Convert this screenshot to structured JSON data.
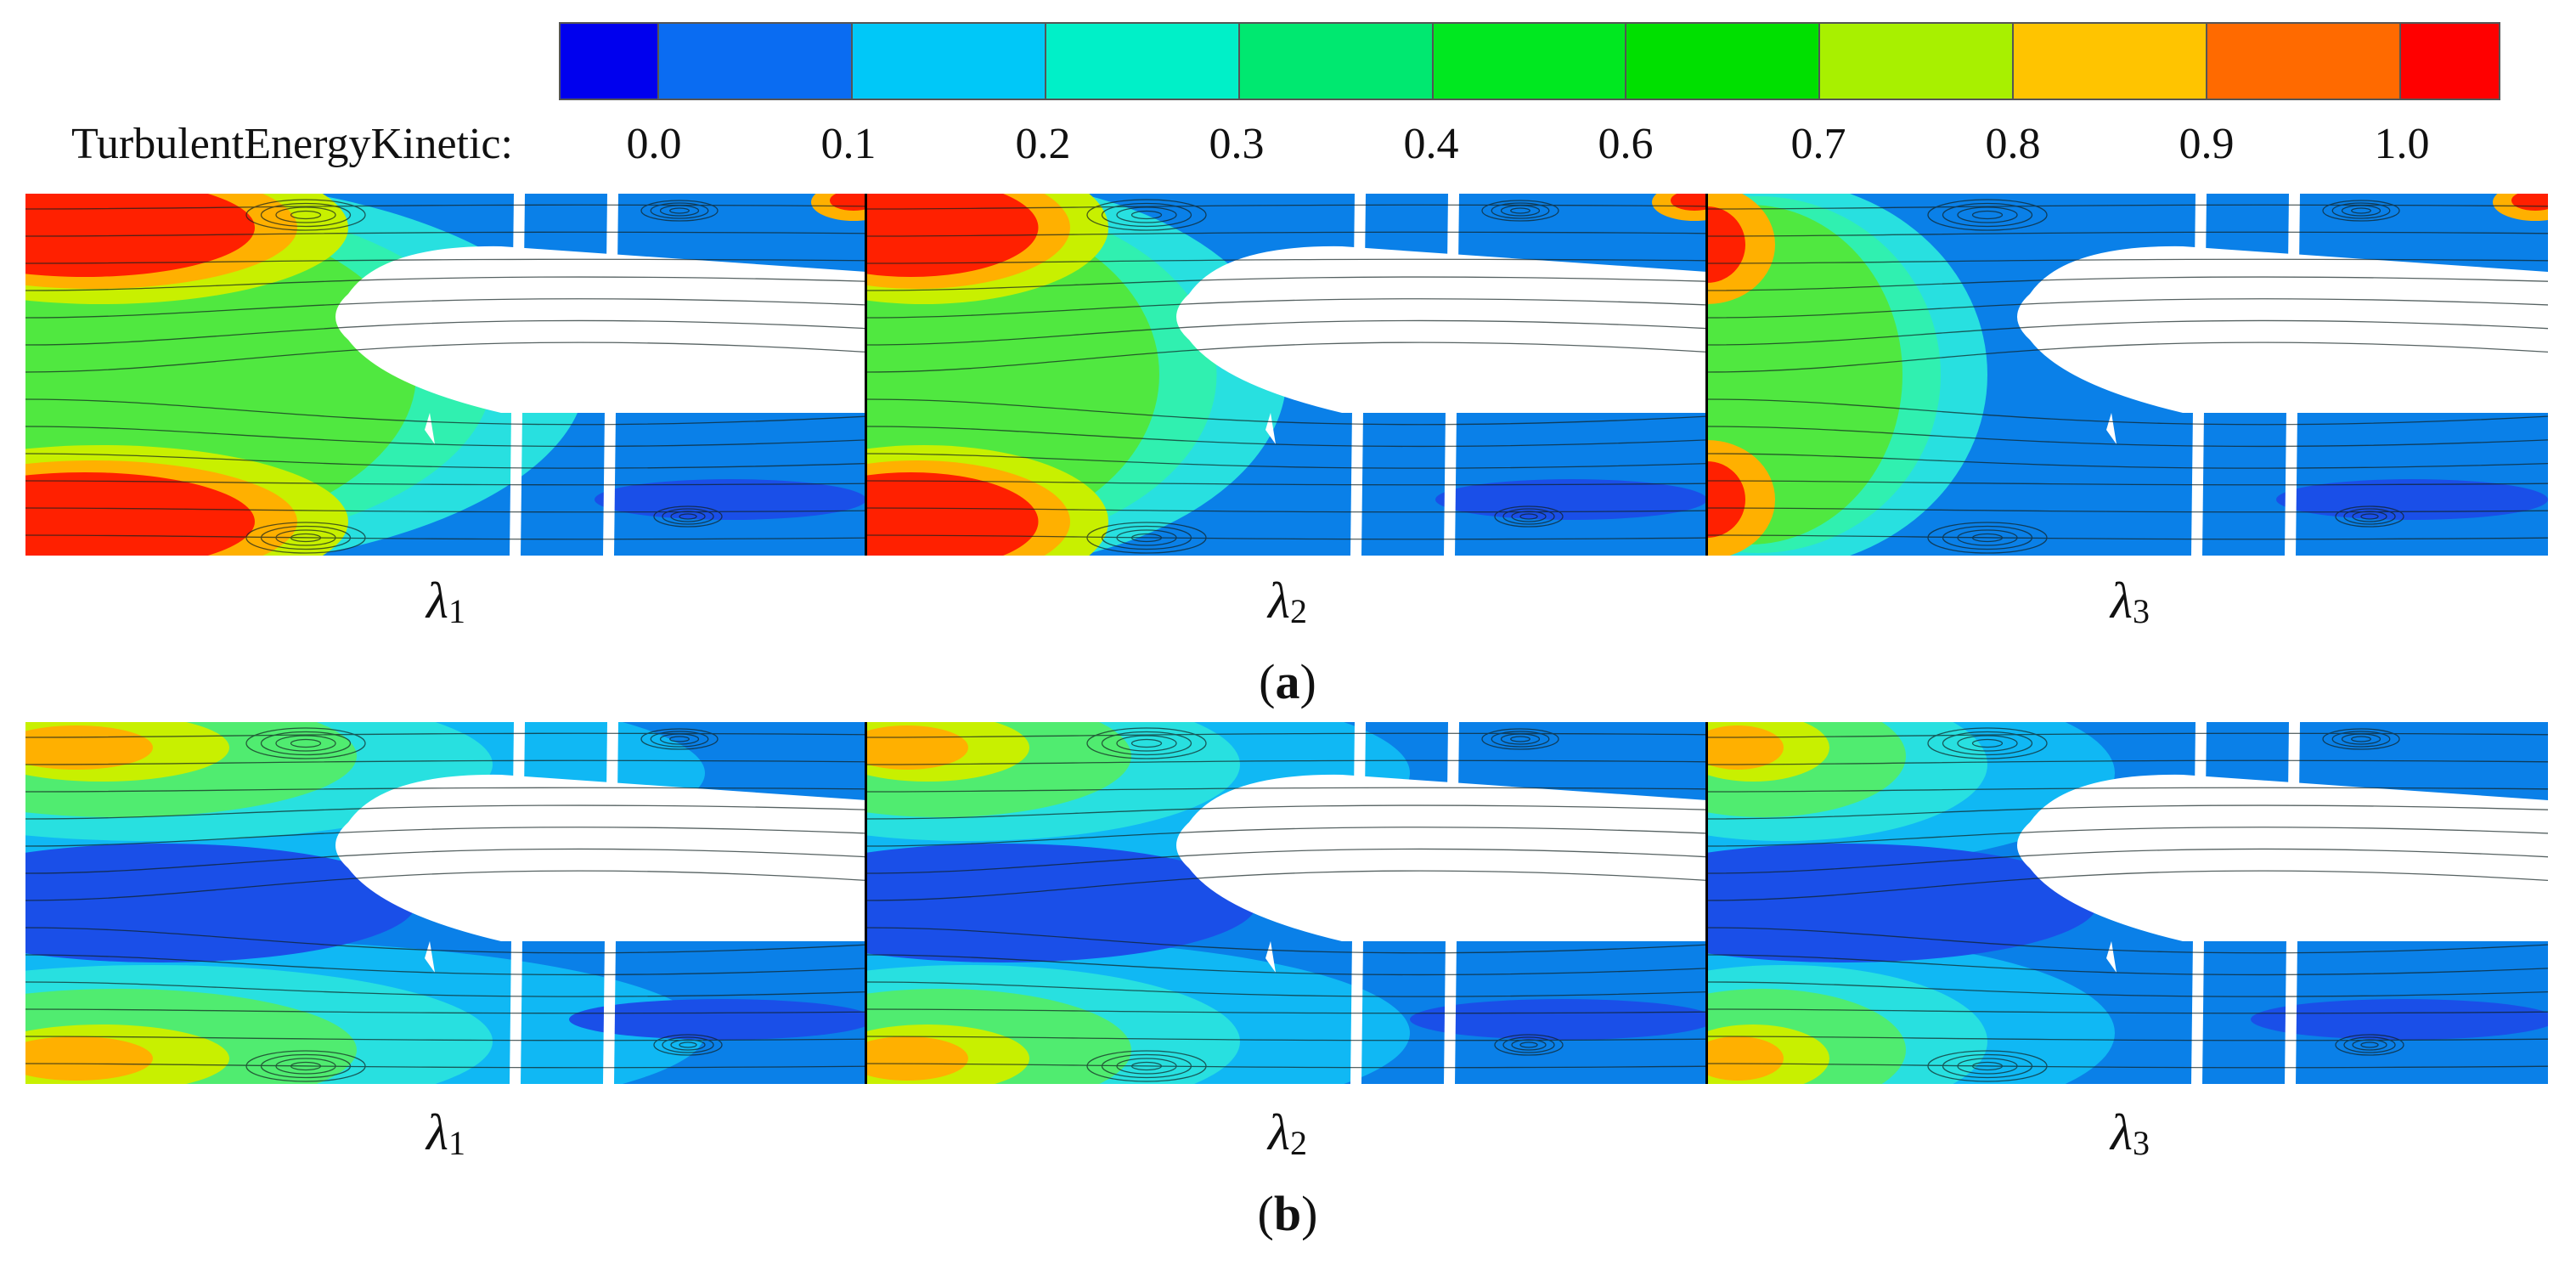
{
  "legend": {
    "title": "TurbulentEnergyKinetic:",
    "ticks": [
      "0.0",
      "0.1",
      "0.2",
      "0.3",
      "0.4",
      "0.6",
      "0.7",
      "0.8",
      "0.9",
      "1.0"
    ],
    "colors": [
      "#0000ee",
      "#0a6cf2",
      "#00c8f8",
      "#00f0c8",
      "#00e870",
      "#00e820",
      "#00e000",
      "#a8f000",
      "#ffc400",
      "#ff6a00",
      "#ff0000"
    ]
  },
  "row_a": {
    "panel_labels": [
      {
        "symbol": "λ",
        "index": "1"
      },
      {
        "symbol": "λ",
        "index": "2"
      },
      {
        "symbol": "λ",
        "index": "3"
      }
    ],
    "subfigure": {
      "open": "(",
      "letter": "a",
      "close": ")"
    }
  },
  "row_b": {
    "panel_labels": [
      {
        "symbol": "λ",
        "index": "1"
      },
      {
        "symbol": "λ",
        "index": "2"
      },
      {
        "symbol": "λ",
        "index": "3"
      }
    ],
    "subfigure": {
      "open": "(",
      "letter": "b",
      "close": ")"
    }
  }
}
